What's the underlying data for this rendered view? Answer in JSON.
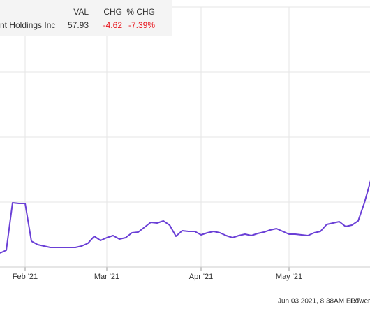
{
  "chart_data": {
    "type": "line",
    "categories": [
      null,
      null,
      null,
      null,
      "Feb '21",
      null,
      null,
      null,
      null,
      null,
      null,
      null,
      null,
      null,
      null,
      null,
      null,
      "Mar '21",
      null,
      null,
      null,
      null,
      null,
      null,
      null,
      null,
      null,
      null,
      null,
      null,
      null,
      null,
      "Apr '21",
      null,
      null,
      null,
      null,
      null,
      null,
      null,
      null,
      null,
      null,
      null,
      null,
      null,
      "May '21",
      null,
      null,
      null,
      null,
      null,
      null,
      null,
      null,
      null,
      null,
      null,
      null,
      null
    ],
    "series": [
      {
        "name": "nt Holdings Inc",
        "color": "#6a3fd6",
        "values": [
          52.15,
          52.58,
          59.89,
          59.78,
          59.78,
          53.98,
          53.44,
          53.23,
          53.01,
          53.01,
          53.01,
          53.01,
          53.01,
          53.23,
          53.66,
          54.73,
          54.09,
          54.52,
          54.84,
          54.3,
          54.52,
          55.27,
          55.38,
          56.13,
          56.88,
          56.77,
          57.1,
          56.45,
          54.73,
          55.59,
          55.48,
          55.48,
          54.95,
          55.27,
          55.48,
          55.27,
          54.84,
          54.52,
          54.84,
          55.05,
          54.84,
          55.16,
          55.38,
          55.7,
          55.91,
          55.48,
          55.05,
          55.05,
          54.95,
          54.84,
          55.27,
          55.48,
          56.56,
          56.77,
          56.99,
          56.24,
          56.45,
          57.1,
          59.89,
          63.33
        ]
      }
    ],
    "ylim": [
      50,
      90
    ],
    "ygrid": [
      50,
      60,
      70,
      80,
      90
    ],
    "grid": true,
    "summary": {
      "headers": [
        "VAL",
        "CHG",
        "% CHG"
      ],
      "value": 57.93,
      "change": -4.62,
      "pct_change": {
        "value": -7.39,
        "label": "-7.39%"
      },
      "change_color": "#e8171f"
    },
    "timestamp": "Jun 03 2021, 8:38AM EDT.",
    "credit": "Powere"
  }
}
